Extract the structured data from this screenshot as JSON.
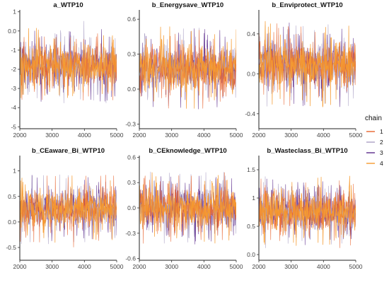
{
  "figure": {
    "legend": {
      "title": "chain",
      "position": "right"
    }
  },
  "chart_data": [
    {
      "type": "line",
      "title": "a_WTP10",
      "x_range": [
        2000,
        5000
      ],
      "x_ticks": [
        2000,
        3000,
        4000,
        5000
      ],
      "y_range": [
        -5.1,
        1.1
      ],
      "y_ticks": [
        -5,
        -4,
        -3,
        -2,
        -1,
        0,
        1
      ],
      "center": -1.8,
      "spread": 0.55,
      "extreme_low": -4.9,
      "extreme_high": 0.9,
      "grid": false,
      "series": [
        {
          "name": "1",
          "color": "#e8622c"
        },
        {
          "name": "2",
          "color": "#aaa0c4"
        },
        {
          "name": "3",
          "color": "#5b2a8c"
        },
        {
          "name": "4",
          "color": "#f59a2e"
        }
      ]
    },
    {
      "type": "line",
      "title": "b_Energysave_WTP10",
      "x_range": [
        2000,
        5000
      ],
      "x_ticks": [
        2000,
        3000,
        4000,
        5000
      ],
      "y_range": [
        -0.34,
        0.68
      ],
      "y_ticks": [
        -0.3,
        0.0,
        0.3,
        0.6
      ],
      "center": 0.18,
      "spread": 0.1,
      "extreme_low": -0.32,
      "extreme_high": 0.65,
      "grid": false,
      "series": [
        {
          "name": "1",
          "color": "#e8622c"
        },
        {
          "name": "2",
          "color": "#aaa0c4"
        },
        {
          "name": "3",
          "color": "#5b2a8c"
        },
        {
          "name": "4",
          "color": "#f59a2e"
        }
      ]
    },
    {
      "type": "line",
      "title": "b_Enviprotect_WTP10",
      "x_range": [
        2000,
        5000
      ],
      "x_ticks": [
        2000,
        3000,
        4000,
        5000
      ],
      "y_range": [
        -0.55,
        0.64
      ],
      "y_ticks": [
        -0.4,
        0.0,
        0.4
      ],
      "center": 0.1,
      "spread": 0.12,
      "extreme_low": -0.5,
      "extreme_high": 0.6,
      "grid": false,
      "series": [
        {
          "name": "1",
          "color": "#e8622c"
        },
        {
          "name": "2",
          "color": "#aaa0c4"
        },
        {
          "name": "3",
          "color": "#5b2a8c"
        },
        {
          "name": "4",
          "color": "#f59a2e"
        }
      ]
    },
    {
      "type": "line",
      "title": "b_CEaware_Bi_WTP10",
      "x_range": [
        2000,
        5000
      ],
      "x_ticks": [
        2000,
        3000,
        4000,
        5000
      ],
      "y_range": [
        -0.75,
        1.3
      ],
      "y_ticks": [
        -0.5,
        0.0,
        0.5,
        1.0
      ],
      "center": 0.25,
      "spread": 0.19,
      "extreme_low": -0.72,
      "extreme_high": 1.2,
      "grid": false,
      "series": [
        {
          "name": "1",
          "color": "#e8622c"
        },
        {
          "name": "2",
          "color": "#aaa0c4"
        },
        {
          "name": "3",
          "color": "#5b2a8c"
        },
        {
          "name": "4",
          "color": "#f59a2e"
        }
      ]
    },
    {
      "type": "line",
      "title": "b_CEknowledge_WTP10",
      "x_range": [
        2000,
        5000
      ],
      "x_ticks": [
        2000,
        3000,
        4000,
        5000
      ],
      "y_range": [
        -0.62,
        0.62
      ],
      "y_ticks": [
        -0.6,
        -0.3,
        0.0,
        0.3,
        0.6
      ],
      "center": 0.0,
      "spread": 0.12,
      "extreme_low": -0.57,
      "extreme_high": 0.5,
      "grid": false,
      "series": [
        {
          "name": "1",
          "color": "#e8622c"
        },
        {
          "name": "2",
          "color": "#aaa0c4"
        },
        {
          "name": "3",
          "color": "#5b2a8c"
        },
        {
          "name": "4",
          "color": "#f59a2e"
        }
      ]
    },
    {
      "type": "line",
      "title": "b_Wasteclass_Bi_WTP10",
      "x_range": [
        2000,
        5000
      ],
      "x_ticks": [
        2000,
        3000,
        4000,
        5000
      ],
      "y_range": [
        -0.1,
        1.75
      ],
      "y_ticks": [
        0.0,
        0.5,
        1.0,
        1.5
      ],
      "center": 0.75,
      "spread": 0.18,
      "extreme_low": -0.05,
      "extreme_high": 1.65,
      "grid": false,
      "series": [
        {
          "name": "1",
          "color": "#e8622c"
        },
        {
          "name": "2",
          "color": "#aaa0c4"
        },
        {
          "name": "3",
          "color": "#5b2a8c"
        },
        {
          "name": "4",
          "color": "#f59a2e"
        }
      ]
    }
  ]
}
